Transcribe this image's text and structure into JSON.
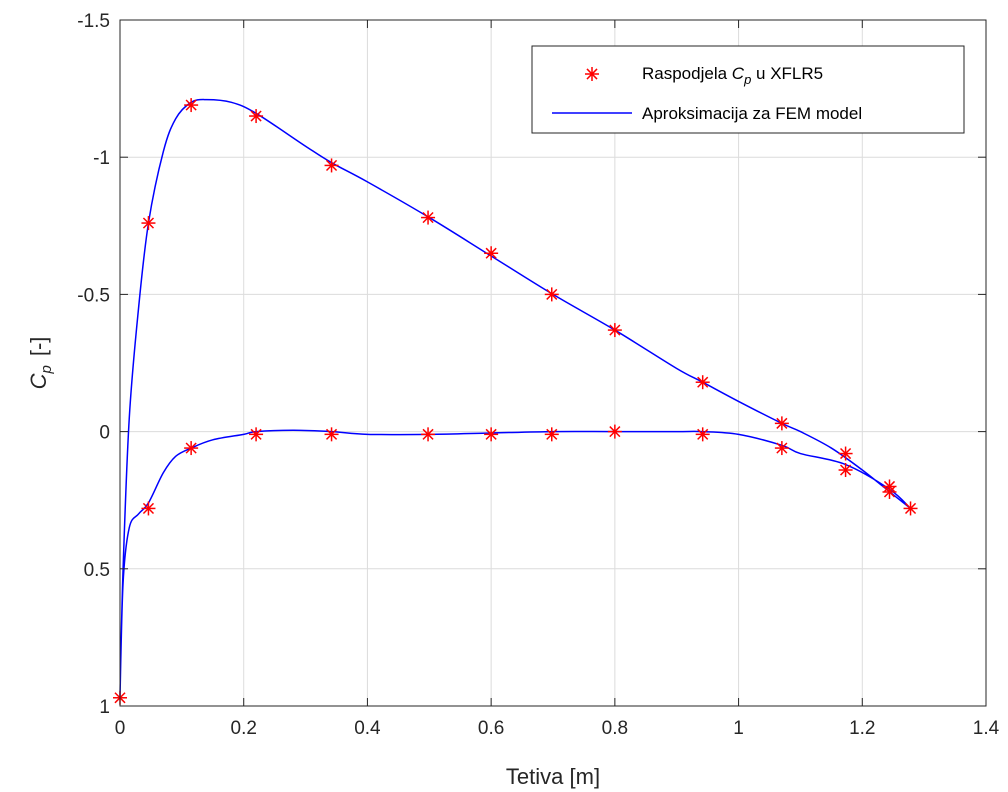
{
  "chart_data": {
    "type": "line",
    "title": "",
    "xlabel": "Tetiva [m]",
    "ylabel": {
      "main": "C",
      "sub": "p",
      "suffix": "[-]"
    },
    "xlim": [
      0,
      1.4
    ],
    "ylim": [
      -1.5,
      1
    ],
    "y_reversed": true,
    "xticks": [
      0,
      0.2,
      0.4,
      0.6,
      0.8,
      1,
      1.2,
      1.4
    ],
    "xtick_labels": [
      "0",
      "0.2",
      "0.4",
      "0.6",
      "0.8",
      "1",
      "1.2",
      "1.4"
    ],
    "yticks": [
      -1.5,
      -1,
      -0.5,
      0,
      0.5,
      1
    ],
    "ytick_labels": [
      "-1.5",
      "-1",
      "-0.5",
      "0",
      "0.5",
      "1"
    ],
    "grid": true,
    "legend_position": "top-right",
    "series": [
      {
        "name": "Raspodjela C_p u XFLR5",
        "legend": {
          "pre": "Raspodjela ",
          "main": "C",
          "sub": "p",
          "post": " u XFLR5"
        },
        "kind": "markers",
        "marker": "asterisk",
        "color": "#ff0000",
        "x": [
          0.0,
          0.046,
          0.115,
          0.22,
          0.342,
          0.498,
          0.6,
          0.698,
          0.8,
          0.942,
          1.07,
          1.173,
          1.244,
          1.278,
          1.244,
          1.173,
          1.07,
          0.942,
          0.8,
          0.698,
          0.6,
          0.498,
          0.342,
          0.22,
          0.115,
          0.046
        ],
        "y": [
          0.97,
          0.28,
          0.06,
          0.01,
          0.01,
          0.01,
          0.01,
          0.01,
          0.0,
          0.01,
          0.06,
          0.14,
          0.22,
          0.28,
          0.2,
          0.08,
          -0.03,
          -0.18,
          -0.37,
          -0.5,
          -0.65,
          -0.78,
          -0.97,
          -1.15,
          -1.19,
          -0.76
        ]
      },
      {
        "name": "Aproksimacija za FEM model",
        "kind": "line",
        "color": "#0000ff",
        "x": [
          1.278,
          1.25,
          1.2,
          1.15,
          1.1,
          1.07,
          1.0,
          0.942,
          0.9,
          0.8,
          0.7,
          0.6,
          0.5,
          0.4,
          0.342,
          0.3,
          0.22,
          0.18,
          0.14,
          0.115,
          0.09,
          0.07,
          0.046,
          0.03,
          0.015,
          0.005,
          0.0,
          0.005,
          0.015,
          0.03,
          0.046,
          0.07,
          0.09,
          0.115,
          0.15,
          0.2,
          0.22,
          0.28,
          0.342,
          0.4,
          0.5,
          0.6,
          0.7,
          0.8,
          0.9,
          0.942,
          1.0,
          1.07,
          1.1,
          1.173,
          1.244,
          1.278
        ],
        "y": [
          0.28,
          0.23,
          0.14,
          0.06,
          0.0,
          -0.03,
          -0.11,
          -0.18,
          -0.23,
          -0.37,
          -0.5,
          -0.64,
          -0.78,
          -0.91,
          -0.98,
          -1.04,
          -1.16,
          -1.2,
          -1.21,
          -1.2,
          -1.14,
          -1.02,
          -0.76,
          -0.45,
          -0.05,
          0.5,
          0.97,
          0.55,
          0.35,
          0.3,
          0.26,
          0.15,
          0.09,
          0.06,
          0.03,
          0.01,
          0.0,
          -0.005,
          0.0,
          0.01,
          0.01,
          0.005,
          0.0,
          0.0,
          0.0,
          0.0,
          0.01,
          0.05,
          0.08,
          0.12,
          0.21,
          0.28
        ]
      }
    ]
  }
}
